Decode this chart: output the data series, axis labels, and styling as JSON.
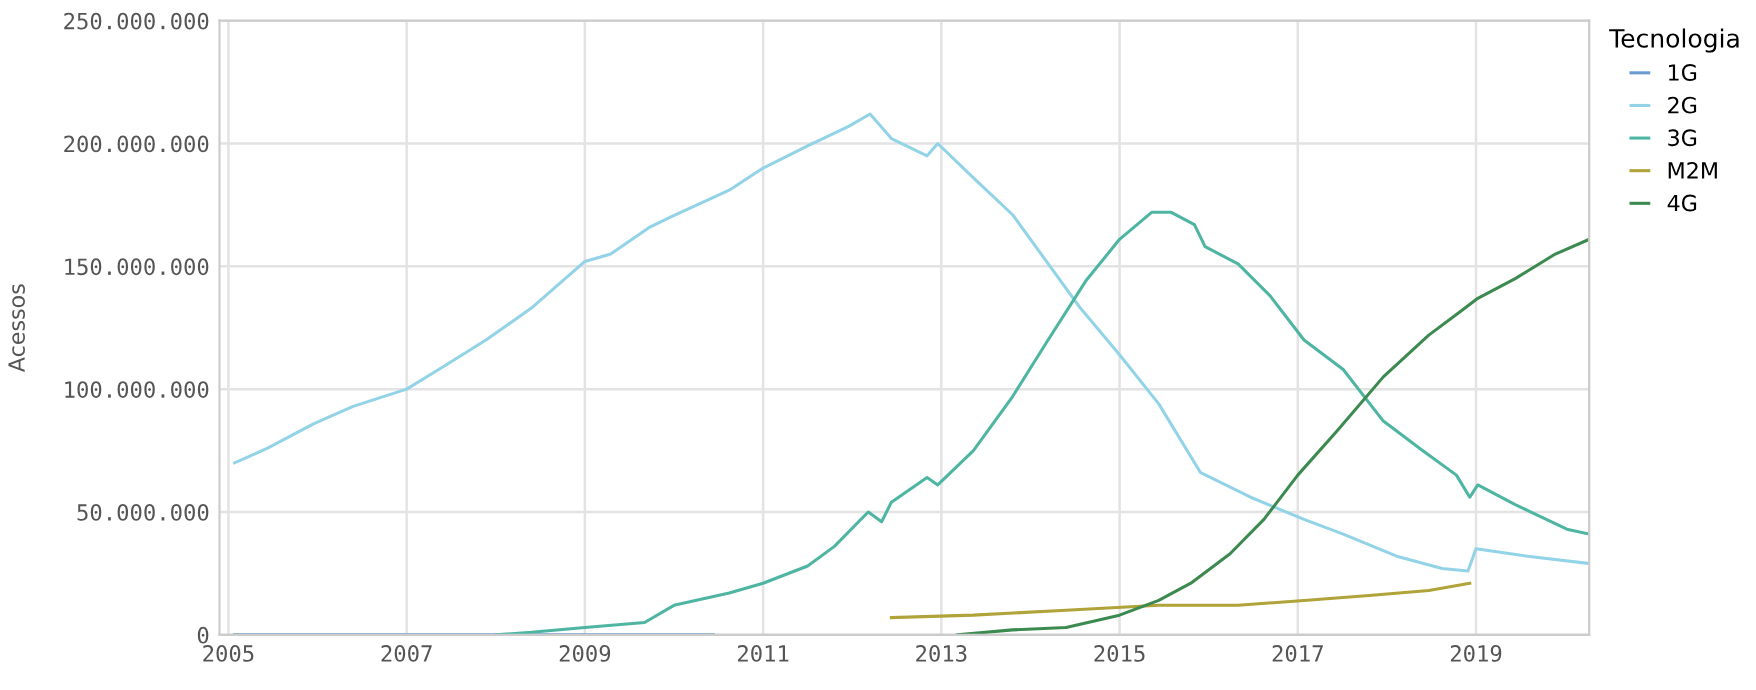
{
  "chart_data": {
    "type": "line",
    "ylabel": "Acessos",
    "legend_title": "Tecnologia",
    "legend": "top right",
    "grid": true,
    "line_style": "solid",
    "xlim": [
      2004.9,
      2020.27
    ],
    "ylim": [
      0,
      250000000
    ],
    "xticks": [
      2005,
      2007,
      2009,
      2011,
      2013,
      2015,
      2017,
      2019
    ],
    "yticks": [
      {
        "value": 0,
        "label": "0"
      },
      {
        "value": 50000000,
        "label": "50.000.000"
      },
      {
        "value": 100000000,
        "label": "100.000.000"
      },
      {
        "value": 150000000,
        "label": "150.000.000"
      },
      {
        "value": 200000000,
        "label": "200.000.000"
      },
      {
        "value": 250000000,
        "label": "250.000.000"
      }
    ],
    "series": [
      {
        "name": "1G",
        "color": "#6a9bd1",
        "x": [
          2005.07,
          2007.0,
          2009.0,
          2010.44
        ],
        "values": [
          0,
          0,
          0,
          0
        ]
      },
      {
        "name": "2G",
        "color": "#93d3e8",
        "x": [
          2005.07,
          2005.44,
          2005.96,
          2006.4,
          2007.0,
          2007.36,
          2007.89,
          2008.4,
          2009.0,
          2009.29,
          2009.73,
          2009.96,
          2010.62,
          2011.0,
          2011.5,
          2011.96,
          2012.2,
          2012.44,
          2012.84,
          2012.96,
          2013.36,
          2013.8,
          2014.18,
          2014.56,
          2015.0,
          2015.44,
          2015.91,
          2016.47,
          2017.07,
          2017.51,
          2018.11,
          2018.62,
          2018.91,
          2019.0,
          2019.58,
          2020.27
        ],
        "values": [
          70000000,
          76000000,
          86000000,
          93000000,
          100000000,
          108000000,
          120000000,
          133000000,
          152000000,
          155000000,
          166000000,
          170000000,
          181000000,
          190000000,
          199000000,
          207000000,
          212000000,
          202000000,
          195000000,
          200000000,
          186000000,
          171000000,
          152000000,
          133000000,
          114000000,
          94000000,
          66000000,
          56000000,
          47000000,
          41000000,
          32000000,
          27000000,
          26000000,
          35000000,
          32000000,
          29000000
        ]
      },
      {
        "name": "3G",
        "color": "#4fb5a3",
        "x": [
          2008.0,
          2008.4,
          2009.0,
          2009.67,
          2010.0,
          2010.62,
          2011.0,
          2011.5,
          2011.8,
          2012.18,
          2012.33,
          2012.44,
          2012.84,
          2012.96,
          2013.36,
          2013.8,
          2014.18,
          2014.62,
          2015.0,
          2015.36,
          2015.58,
          2015.84,
          2015.96,
          2016.33,
          2016.69,
          2017.07,
          2017.51,
          2017.96,
          2018.4,
          2018.78,
          2018.93,
          2019.02,
          2019.44,
          2020.02,
          2020.27
        ],
        "values": [
          0,
          1000000,
          3000000,
          5000000,
          12000000,
          17000000,
          21000000,
          28000000,
          36000000,
          50000000,
          46000000,
          54000000,
          64000000,
          61000000,
          75000000,
          97000000,
          119000000,
          144000000,
          161000000,
          172000000,
          172000000,
          167000000,
          158000000,
          151000000,
          138000000,
          120000000,
          108000000,
          87000000,
          75000000,
          65000000,
          56000000,
          61000000,
          53000000,
          43000000,
          41000000
        ]
      },
      {
        "name": "M2M",
        "color": "#b0a33a",
        "x": [
          2012.44,
          2013.36,
          2014.4,
          2015.44,
          2016.33,
          2017.07,
          2017.8,
          2018.47,
          2018.93
        ],
        "values": [
          7000000,
          8000000,
          10000000,
          12000000,
          12000000,
          14000000,
          16000000,
          18000000,
          21000000
        ]
      },
      {
        "name": "4G",
        "color": "#3d8a50",
        "x": [
          2013.18,
          2013.8,
          2014.4,
          2015.0,
          2015.44,
          2015.8,
          2016.24,
          2016.62,
          2017.0,
          2017.44,
          2017.96,
          2018.47,
          2018.84,
          2019.02,
          2019.44,
          2019.89,
          2020.27
        ],
        "values": [
          0,
          2000000,
          3000000,
          8000000,
          14000000,
          21000000,
          33000000,
          47000000,
          65000000,
          83000000,
          105000000,
          122000000,
          132000000,
          137000000,
          145000000,
          155000000,
          161000000
        ]
      }
    ]
  }
}
